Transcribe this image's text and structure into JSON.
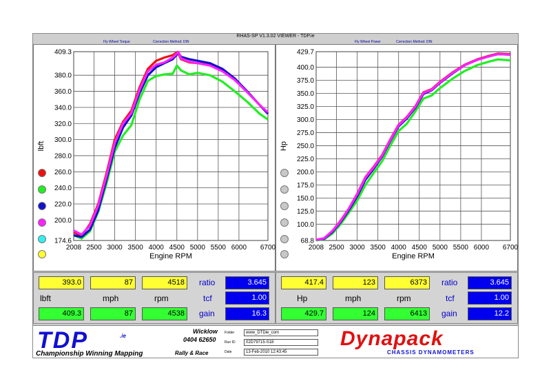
{
  "window_title": "RHAS-SP V1.3.02 VIEWER - TDP.ie",
  "left_subtitle_a": "Fly Wheel Torque",
  "left_subtitle_b": "Correction Method: DIN",
  "right_subtitle_a": "Fly Wheel Power",
  "right_subtitle_b": "Correction Method: DIN",
  "colors": {
    "red": "#ee1111",
    "green": "#22ee22",
    "blue": "#1111cc",
    "magenta": "#ff22ff",
    "cyan": "#33eeee",
    "yellow": "#ffff33"
  },
  "chart_data": [
    {
      "type": "line",
      "ylabel": "lbft",
      "xlabel": "Engine RPM",
      "xlim": [
        2008,
        6700
      ],
      "ylim": [
        174.6,
        409.3
      ],
      "x_ticks": [
        "2008",
        "2500",
        "3000",
        "3500",
        "4000",
        "4500",
        "5000",
        "5500",
        "6000",
        "6700"
      ],
      "y_ticks": [
        "409.3",
        "380.0",
        "360.0",
        "340.0",
        "320.0",
        "300.0",
        "280.0",
        "260.0",
        "240.0",
        "220.0",
        "200.0",
        "174.6"
      ],
      "grid": true,
      "series": [
        {
          "color": "red",
          "points": [
            [
              2008,
              185
            ],
            [
              2200,
              180
            ],
            [
              2400,
              195
            ],
            [
              2600,
              220
            ],
            [
              2800,
              258
            ],
            [
              3000,
              300
            ],
            [
              3200,
              322
            ],
            [
              3400,
              336
            ],
            [
              3600,
              365
            ],
            [
              3800,
              388
            ],
            [
              4000,
              398
            ],
            [
              4200,
              402
            ],
            [
              4400,
              405
            ],
            [
              4520,
              409
            ],
            [
              4600,
              400
            ],
            [
              4800,
              396
            ],
            [
              5000,
              395
            ],
            [
              5300,
              393
            ],
            [
              5600,
              387
            ],
            [
              5900,
              375
            ],
            [
              6200,
              360
            ],
            [
              6500,
              343
            ],
            [
              6700,
              333
            ]
          ]
        },
        {
          "color": "green",
          "points": [
            [
              2008,
              181
            ],
            [
              2200,
              177
            ],
            [
              2400,
              186
            ],
            [
              2600,
              210
            ],
            [
              2800,
              245
            ],
            [
              3000,
              285
            ],
            [
              3200,
              305
            ],
            [
              3400,
              318
            ],
            [
              3600,
              350
            ],
            [
              3800,
              373
            ],
            [
              4000,
              379
            ],
            [
              4200,
              381
            ],
            [
              4400,
              382
            ],
            [
              4500,
              392
            ],
            [
              4600,
              386
            ],
            [
              4800,
              381
            ],
            [
              5000,
              383
            ],
            [
              5300,
              380
            ],
            [
              5600,
              372
            ],
            [
              5900,
              360
            ],
            [
              6200,
              347
            ],
            [
              6500,
              332
            ],
            [
              6700,
              325
            ]
          ]
        },
        {
          "color": "blue",
          "points": [
            [
              2008,
              181
            ],
            [
              2200,
              179
            ],
            [
              2400,
              188
            ],
            [
              2600,
              212
            ],
            [
              2800,
              250
            ],
            [
              3000,
              290
            ],
            [
              3200,
              315
            ],
            [
              3400,
              330
            ],
            [
              3600,
              358
            ],
            [
              3800,
              380
            ],
            [
              4000,
              390
            ],
            [
              4200,
              395
            ],
            [
              4400,
              400
            ],
            [
              4540,
              408
            ],
            [
              4600,
              403
            ],
            [
              4800,
              400
            ],
            [
              5000,
              398
            ],
            [
              5300,
              395
            ],
            [
              5600,
              388
            ],
            [
              5900,
              376
            ],
            [
              6200,
              360
            ],
            [
              6500,
              343
            ],
            [
              6700,
              332
            ]
          ]
        },
        {
          "color": "magenta",
          "points": [
            [
              2008,
              187
            ],
            [
              2200,
              182
            ],
            [
              2400,
              193
            ],
            [
              2600,
              218
            ],
            [
              2800,
              255
            ],
            [
              3000,
              296
            ],
            [
              3200,
              320
            ],
            [
              3400,
              333
            ],
            [
              3600,
              362
            ],
            [
              3800,
              385
            ],
            [
              4000,
              393
            ],
            [
              4200,
              396
            ],
            [
              4400,
              402
            ],
            [
              4540,
              409
            ],
            [
              4600,
              401
            ],
            [
              4800,
              397
            ],
            [
              5000,
              395
            ],
            [
              5300,
              392
            ],
            [
              5600,
              385
            ],
            [
              5900,
              374
            ],
            [
              6200,
              359
            ],
            [
              6500,
              343
            ],
            [
              6700,
              334
            ]
          ]
        }
      ]
    },
    {
      "type": "line",
      "ylabel": "Hp",
      "xlabel": "Engine RPM",
      "xlim": [
        2008,
        6700
      ],
      "ylim": [
        68.8,
        429.7
      ],
      "x_ticks": [
        "2008",
        "2500",
        "3000",
        "3500",
        "4000",
        "4500",
        "5000",
        "5500",
        "6000",
        "6700"
      ],
      "y_ticks": [
        "429.7",
        "400.0",
        "375.0",
        "350.0",
        "325.0",
        "300.0",
        "275.0",
        "250.0",
        "225.0",
        "200.0",
        "175.0",
        "150.0",
        "125.0",
        "100.0",
        "68.8"
      ],
      "grid": true,
      "series": [
        {
          "color": "red",
          "points": [
            [
              2008,
              70
            ],
            [
              2200,
              73
            ],
            [
              2400,
              87
            ],
            [
              2600,
              107
            ],
            [
              2800,
              130
            ],
            [
              3000,
              158
            ],
            [
              3200,
              190
            ],
            [
              3400,
              210
            ],
            [
              3600,
              232
            ],
            [
              3800,
              262
            ],
            [
              4000,
              290
            ],
            [
              4200,
              305
            ],
            [
              4400,
              325
            ],
            [
              4600,
              352
            ],
            [
              4800,
              358
            ],
            [
              5000,
              372
            ],
            [
              5300,
              390
            ],
            [
              5600,
              405
            ],
            [
              5900,
              415
            ],
            [
              6200,
              422
            ],
            [
              6400,
              426
            ],
            [
              6700,
              425
            ]
          ]
        },
        {
          "color": "green",
          "points": [
            [
              2008,
              69
            ],
            [
              2200,
              71
            ],
            [
              2400,
              82
            ],
            [
              2600,
              100
            ],
            [
              2800,
              122
            ],
            [
              3000,
              145
            ],
            [
              3200,
              175
            ],
            [
              3400,
              198
            ],
            [
              3600,
              220
            ],
            [
              3800,
              250
            ],
            [
              4000,
              278
            ],
            [
              4200,
              292
            ],
            [
              4400,
              315
            ],
            [
              4600,
              340
            ],
            [
              4800,
              346
            ],
            [
              5000,
              360
            ],
            [
              5300,
              378
            ],
            [
              5600,
              393
            ],
            [
              5900,
              404
            ],
            [
              6200,
              411
            ],
            [
              6400,
              415
            ],
            [
              6700,
              413
            ]
          ]
        },
        {
          "color": "blue",
          "points": [
            [
              2008,
              70
            ],
            [
              2200,
              72
            ],
            [
              2400,
              85
            ],
            [
              2600,
              104
            ],
            [
              2800,
              127
            ],
            [
              3000,
              153
            ],
            [
              3200,
              185
            ],
            [
              3400,
              206
            ],
            [
              3600,
              229
            ],
            [
              3800,
              259
            ],
            [
              4000,
              287
            ],
            [
              4200,
              302
            ],
            [
              4400,
              322
            ],
            [
              4600,
              349
            ],
            [
              4800,
              356
            ],
            [
              5000,
              370
            ],
            [
              5300,
              388
            ],
            [
              5600,
              404
            ],
            [
              5900,
              414
            ],
            [
              6200,
              421
            ],
            [
              6400,
              425
            ],
            [
              6700,
              424
            ]
          ]
        },
        {
          "color": "magenta",
          "points": [
            [
              2008,
              70
            ],
            [
              2200,
              73
            ],
            [
              2400,
              87
            ],
            [
              2600,
              106
            ],
            [
              2800,
              130
            ],
            [
              3000,
              157
            ],
            [
              3200,
              189
            ],
            [
              3400,
              209
            ],
            [
              3600,
              231
            ],
            [
              3800,
              261
            ],
            [
              4000,
              289
            ],
            [
              4200,
              304
            ],
            [
              4400,
              324
            ],
            [
              4600,
              351
            ],
            [
              4800,
              357
            ],
            [
              5000,
              371
            ],
            [
              5300,
              389
            ],
            [
              5600,
              404
            ],
            [
              5900,
              414
            ],
            [
              6200,
              421
            ],
            [
              6400,
              425
            ],
            [
              6700,
              424
            ]
          ]
        }
      ]
    }
  ],
  "left_panel": {
    "row1": [
      "393.0",
      "87",
      "4518"
    ],
    "row2_labels": [
      "lbft",
      "mph",
      "rpm"
    ],
    "row3": [
      "409.3",
      "87",
      "4538"
    ],
    "ratio_label": "ratio",
    "ratio_value": "3.645",
    "tcf_label": "tcf",
    "tcf_value": "1.00",
    "gain_label": "gain",
    "gain_value": "16.3"
  },
  "right_panel": {
    "row1": [
      "417.4",
      "123",
      "6373"
    ],
    "row2_labels": [
      "Hp",
      "mph",
      "rpm"
    ],
    "row3": [
      "429.7",
      "124",
      "6413"
    ],
    "ratio_label": "ratio",
    "ratio_value": "3.645",
    "tcf_label": "tcf",
    "tcf_value": "1.00",
    "gain_label": "gain",
    "gain_value": "12.2"
  },
  "footer": {
    "logo": "TDP",
    "logo_ie": ".ie",
    "tagline": "Championship Winning Mapping",
    "rally": "Rally & Race",
    "location": "Wicklow",
    "phone": "0404 62650",
    "folder_label": "Folder",
    "folder_value": "www_DTDie_com",
    "run_label": "Run ID",
    "run_value": "02D79715-S18",
    "date_label": "Date",
    "date_value": "13-Feb-2010 12:43:45",
    "brand": "Dynapack",
    "brand_sub": "CHASSIS DYNAMOMETERS"
  }
}
